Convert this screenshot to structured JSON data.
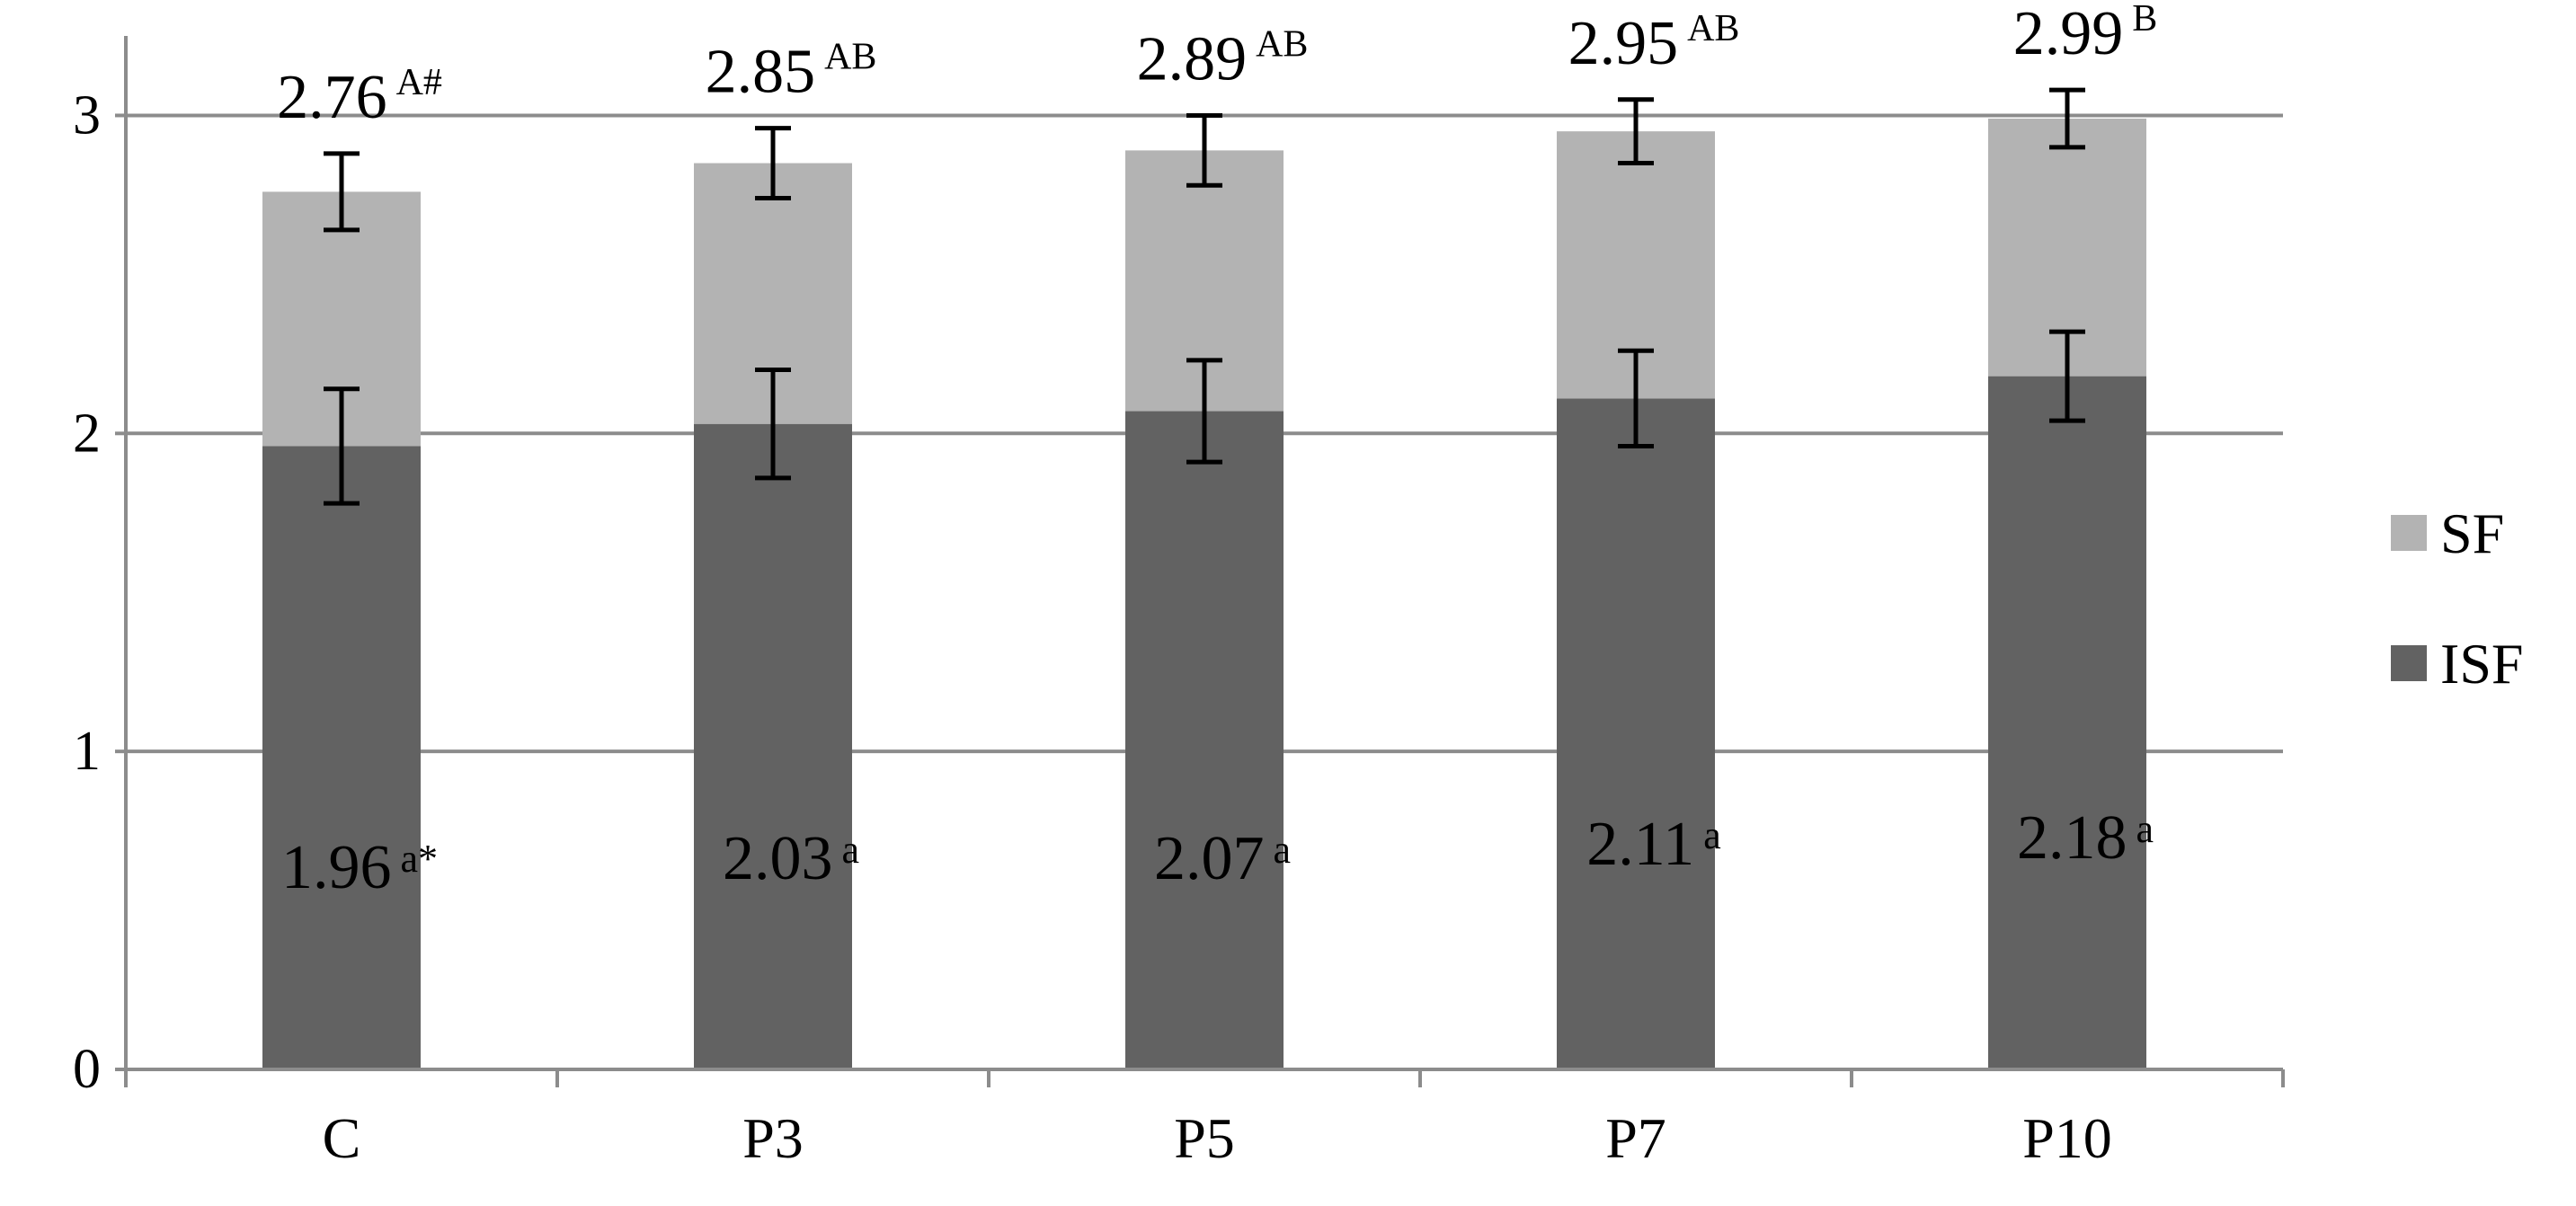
{
  "chart_data": {
    "type": "bar",
    "stacked": true,
    "categories": [
      "C",
      "P3",
      "P5",
      "P7",
      "P10"
    ],
    "series": [
      {
        "name": "ISF",
        "values": [
          1.96,
          2.03,
          2.07,
          2.11,
          2.18
        ],
        "error": [
          0.18,
          0.17,
          0.16,
          0.15,
          0.14
        ],
        "labels": [
          "1.96",
          "2.03",
          "2.07",
          "2.11",
          "2.18"
        ],
        "label_sups": [
          "a*",
          "a",
          "a",
          "a",
          "a"
        ],
        "color": "#626262"
      },
      {
        "name": "SF",
        "values": [
          0.8,
          0.82,
          0.82,
          0.84,
          0.81
        ],
        "error": [
          0.12,
          0.11,
          0.11,
          0.1,
          0.09
        ],
        "color": "#b3b3b3"
      }
    ],
    "totals": [
      2.76,
      2.85,
      2.89,
      2.95,
      2.99
    ],
    "total_labels": [
      "2.76",
      "2.85",
      "2.89",
      "2.95",
      "2.99"
    ],
    "total_sups": [
      "A#",
      "AB",
      "AB",
      "AB",
      "B"
    ],
    "y_ticks": [
      "0",
      "1",
      "2",
      "3"
    ],
    "ylim": [
      0,
      3.25
    ],
    "grid": true,
    "legend": "right",
    "legend_order": [
      "SF",
      "ISF"
    ],
    "title": "",
    "xlabel": "",
    "ylabel": "",
    "colors": {
      "axis": "#8c8c8c",
      "grid": "#8c8c8c",
      "error": "#000000"
    }
  }
}
